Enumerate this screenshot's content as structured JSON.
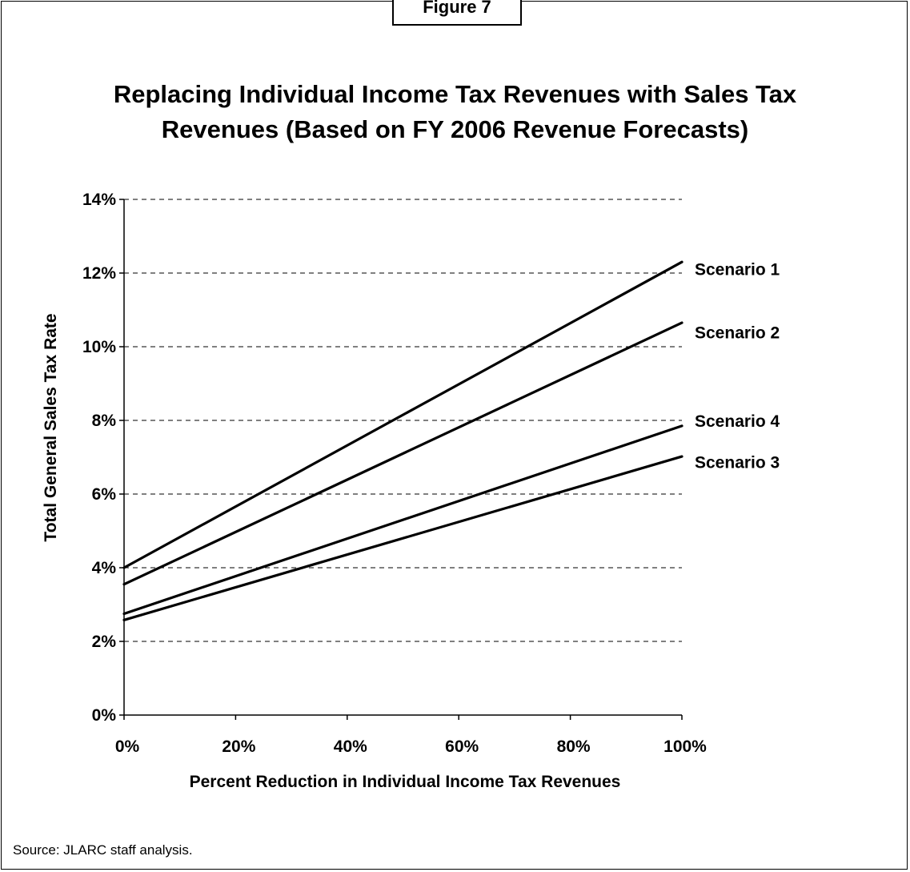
{
  "figure_label": "Figure 7",
  "source_note": "Source:  JLARC staff analysis.",
  "chart_data": {
    "type": "line",
    "title": "Replacing Individual Income Tax Revenues with Sales Tax Revenues (Based on FY 2006 Revenue Forecasts)",
    "xlabel": "Percent Reduction in Individual Income Tax Revenues",
    "ylabel": "Total General Sales Tax Rate",
    "x_ticks": [
      "0%",
      "20%",
      "40%",
      "60%",
      "80%",
      "100%"
    ],
    "y_ticks": [
      "0%",
      "2%",
      "4%",
      "6%",
      "8%",
      "10%",
      "12%",
      "14%"
    ],
    "xlim": [
      0,
      100
    ],
    "ylim": [
      0,
      14
    ],
    "grid": "horizontal dashed",
    "legend": "labels at right end of lines",
    "x": [
      0,
      100
    ],
    "series": [
      {
        "name": "Scenario 1",
        "values": [
          4.0,
          12.3
        ]
      },
      {
        "name": "Scenario 2",
        "values": [
          3.55,
          10.65
        ]
      },
      {
        "name": "Scenario 4",
        "values": [
          2.75,
          7.85
        ]
      },
      {
        "name": "Scenario 3",
        "values": [
          2.58,
          7.02
        ]
      }
    ],
    "label_y": [
      12.1,
      10.38,
      7.98,
      6.86
    ]
  }
}
